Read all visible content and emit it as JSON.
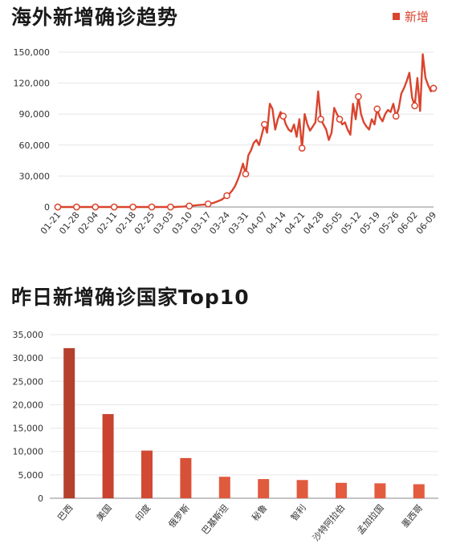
{
  "chart_data": [
    {
      "type": "line",
      "title": "海外新增确诊趋势",
      "legend": "新增",
      "legend_position": "top-right",
      "color": "#d9452f",
      "ylim": [
        0,
        150000
      ],
      "y_ticks": [
        "0",
        "30,000",
        "60,000",
        "90,000",
        "120,000",
        "150,000"
      ],
      "x_ticks": [
        "01-21",
        "01-28",
        "02-04",
        "02-11",
        "02-18",
        "02-25",
        "03-03",
        "03-10",
        "03-17",
        "03-24",
        "03-31",
        "04-07",
        "04-14",
        "04-21",
        "04-28",
        "05-05",
        "05-12",
        "05-19",
        "05-26",
        "06-02",
        "06-09"
      ],
      "grid": true,
      "series": [
        {
          "name": "新增",
          "x_start": "01-21",
          "values": [
            0,
            0,
            0,
            0,
            0,
            0,
            0,
            0,
            0,
            0,
            0,
            0,
            0,
            0,
            0,
            0,
            0,
            0,
            0,
            0,
            0,
            0,
            0,
            0,
            0,
            0,
            0,
            0,
            0,
            0,
            0,
            0,
            0,
            0,
            0,
            0,
            0,
            0,
            0,
            0,
            0,
            0,
            0,
            0,
            0,
            200,
            300,
            500,
            800,
            1000,
            1200,
            1500,
            1800,
            2000,
            2200,
            2500,
            3000,
            3500,
            4000,
            5000,
            6000,
            7000,
            9000,
            11000,
            13000,
            16000,
            20000,
            26000,
            33000,
            42000,
            32000,
            50000,
            55000,
            62000,
            65000,
            60000,
            70000,
            80000,
            72000,
            100000,
            95000,
            75000,
            85000,
            92000,
            88000,
            80000,
            75000,
            73000,
            80000,
            68000,
            85000,
            57000,
            90000,
            80000,
            74000,
            78000,
            82000,
            112000,
            85000,
            80000,
            75000,
            65000,
            72000,
            96000,
            90000,
            85000,
            80000,
            82000,
            75000,
            70000,
            100000,
            85000,
            107000,
            90000,
            82000,
            78000,
            75000,
            85000,
            80000,
            95000,
            87000,
            83000,
            90000,
            94000,
            92000,
            100000,
            88000,
            95000,
            110000,
            115000,
            122000,
            130000,
            106000,
            98000,
            125000,
            93000,
            148000,
            125000,
            118000,
            112000,
            115000
          ]
        }
      ],
      "markers_every_days": 7
    },
    {
      "type": "bar",
      "title": "昨日新增确诊国家Top10",
      "ylim": [
        0,
        35000
      ],
      "y_ticks": [
        "0",
        "5,000",
        "10,000",
        "15,000",
        "20,000",
        "25,000",
        "30,000",
        "35,000"
      ],
      "categories": [
        "巴西",
        "美国",
        "印度",
        "俄罗斯",
        "巴基斯坦",
        "秘鲁",
        "智利",
        "沙特阿拉伯",
        "孟加拉国",
        "墨西哥"
      ],
      "values": [
        32100,
        18000,
        10200,
        8600,
        4600,
        4100,
        3900,
        3300,
        3200,
        3000
      ],
      "colors": [
        "#b5402b",
        "#c9432f",
        "#d24a33",
        "#d75138",
        "#e05a3e",
        "#e05a3e",
        "#e05a3e",
        "#e35c40",
        "#e35c40",
        "#e35c40"
      ],
      "grid": true
    }
  ]
}
